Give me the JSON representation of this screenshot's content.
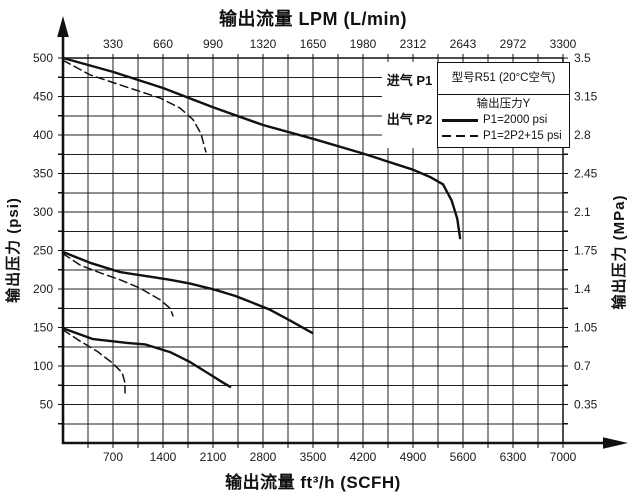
{
  "colors": {
    "ink": "#111111",
    "grid": "#1f1f1f",
    "background": "#ffffff"
  },
  "titles": {
    "top": "输出流量 LPM (L/min)",
    "bottom": "输出流量 ft³/h (SCFH)",
    "left": "输出压力 (psi)",
    "right": "输出压力 (MPa)"
  },
  "annotations": {
    "inlet": "进气 P1",
    "outlet": "出气 P2"
  },
  "legend": {
    "model": "型号R51 (20°C空气)",
    "header": "输出压力Y",
    "entries": [
      {
        "style": "solid",
        "label": "P1=2000 psi"
      },
      {
        "style": "dashed",
        "label": "P1=2P2+15 psi"
      }
    ]
  },
  "chart_data": {
    "type": "line",
    "title": "型号R51 (20°C空气)",
    "axes": {
      "bottom": {
        "label": "输出流量 ft³/h (SCFH)",
        "unit": "SCFH",
        "range": [
          0,
          7000
        ],
        "minor_step": 350,
        "ticks": [
          700,
          1400,
          2100,
          2800,
          3500,
          4200,
          4900,
          5600,
          6300,
          7000
        ]
      },
      "top": {
        "label": "输出流量 LPM (L/min)",
        "unit": "L/min",
        "ticks": [
          330,
          660,
          990,
          1320,
          1650,
          1980,
          2312,
          2643,
          2972,
          3300
        ]
      },
      "left": {
        "label": "输出压力 (psi)",
        "unit": "psi",
        "range": [
          0,
          500
        ],
        "minor_step": 25,
        "ticks": [
          50,
          100,
          150,
          200,
          250,
          300,
          350,
          400,
          450,
          500
        ]
      },
      "right": {
        "label": "输出压力 (MPa)",
        "unit": "MPa",
        "ticks": [
          0.35,
          0.7,
          1.05,
          1.4,
          1.75,
          2.1,
          2.45,
          2.8,
          3.15,
          3.5
        ]
      }
    },
    "grid": {
      "show": true,
      "x_minor": 350,
      "y_minor": 25
    },
    "legend_position": "top-right",
    "series": [
      {
        "id": "set500-solid",
        "name": "P1=2000 psi (set 500 psi)",
        "style": "solid",
        "points": [
          [
            0,
            500
          ],
          [
            700,
            482
          ],
          [
            1400,
            461
          ],
          [
            2100,
            436
          ],
          [
            2800,
            413
          ],
          [
            3500,
            395
          ],
          [
            4200,
            376
          ],
          [
            4900,
            355
          ],
          [
            5150,
            345
          ],
          [
            5320,
            336
          ],
          [
            5440,
            315
          ],
          [
            5520,
            291
          ],
          [
            5560,
            266
          ]
        ]
      },
      {
        "id": "set500-dashed",
        "name": "P1=2P2+15 psi (set 500 psi)",
        "style": "dashed",
        "points": [
          [
            0,
            497
          ],
          [
            380,
            478
          ],
          [
            900,
            462
          ],
          [
            1360,
            448
          ],
          [
            1640,
            435
          ],
          [
            1820,
            420
          ],
          [
            1930,
            402
          ],
          [
            2000,
            378
          ]
        ]
      },
      {
        "id": "set250-solid",
        "name": "P1=2000 psi (set 250 psi)",
        "style": "solid",
        "points": [
          [
            0,
            248
          ],
          [
            380,
            234
          ],
          [
            800,
            222
          ],
          [
            1220,
            216
          ],
          [
            1500,
            212
          ],
          [
            1780,
            207
          ],
          [
            2130,
            199
          ],
          [
            2410,
            191
          ],
          [
            2580,
            185
          ],
          [
            2900,
            173
          ],
          [
            3180,
            159
          ],
          [
            3490,
            143
          ]
        ]
      },
      {
        "id": "set250-dashed",
        "name": "P1=2P2+15 psi (set 250 psi)",
        "style": "dashed",
        "points": [
          [
            0,
            246
          ],
          [
            240,
            231
          ],
          [
            520,
            221
          ],
          [
            800,
            212
          ],
          [
            1080,
            201
          ],
          [
            1360,
            186
          ],
          [
            1500,
            175
          ],
          [
            1540,
            165
          ]
        ]
      },
      {
        "id": "set150-solid",
        "name": "P1=2000 psi (set 150 psi)",
        "style": "solid",
        "points": [
          [
            0,
            149
          ],
          [
            420,
            135
          ],
          [
            900,
            130
          ],
          [
            1150,
            128
          ],
          [
            1500,
            118
          ],
          [
            1780,
            105
          ],
          [
            2060,
            89
          ],
          [
            2230,
            79
          ],
          [
            2340,
            73
          ]
        ]
      },
      {
        "id": "set150-dashed",
        "name": "P1=2P2+15 psi (set 150 psi)",
        "style": "dashed",
        "points": [
          [
            0,
            147
          ],
          [
            210,
            134
          ],
          [
            480,
            119
          ],
          [
            690,
            104
          ],
          [
            830,
            91
          ],
          [
            865,
            79
          ],
          [
            870,
            65
          ]
        ]
      }
    ]
  }
}
